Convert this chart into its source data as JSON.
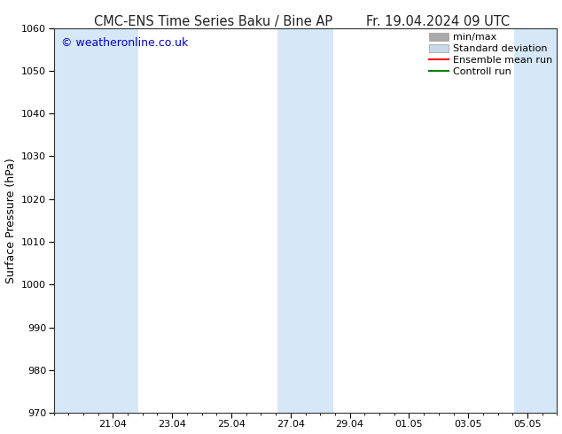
{
  "title_left": "CMC-ENS Time Series Baku / Bine AP",
  "title_right": "Fr. 19.04.2024 09 UTC",
  "ylabel": "Surface Pressure (hPa)",
  "ylim": [
    970,
    1060
  ],
  "yticks": [
    970,
    980,
    990,
    1000,
    1010,
    1020,
    1030,
    1040,
    1050,
    1060
  ],
  "x_tick_labels": [
    "21.04",
    "23.04",
    "25.04",
    "27.04",
    "29.04",
    "01.05",
    "03.05",
    "05.05"
  ],
  "x_tick_positions": [
    2.0,
    4.0,
    6.0,
    8.0,
    10.0,
    12.0,
    14.0,
    16.0
  ],
  "xlim": [
    0,
    17.0
  ],
  "shaded_bands": [
    {
      "x_start": 0.0,
      "x_end": 2.85
    },
    {
      "x_start": 7.55,
      "x_end": 9.45
    },
    {
      "x_start": 15.55,
      "x_end": 17.0
    }
  ],
  "band_color": "#d6e8f7",
  "watermark": "© weatheronline.co.uk",
  "watermark_color": "#0000cc",
  "legend_items": [
    {
      "label": "min/max",
      "color": "#aaaaaa",
      "lw": 5,
      "type": "patch"
    },
    {
      "label": "Standard deviation",
      "color": "#c8daea",
      "lw": 5,
      "type": "patch"
    },
    {
      "label": "Ensemble mean run",
      "color": "#ff0000",
      "lw": 1.5,
      "type": "line"
    },
    {
      "label": "Controll run",
      "color": "#008000",
      "lw": 1.5,
      "type": "line"
    }
  ],
  "bg_color": "#ffffff",
  "plot_bg_color": "#ffffff",
  "spine_color": "#333333",
  "title_fontsize": 10.5,
  "label_fontsize": 9,
  "tick_fontsize": 8,
  "legend_fontsize": 8,
  "watermark_fontsize": 9
}
